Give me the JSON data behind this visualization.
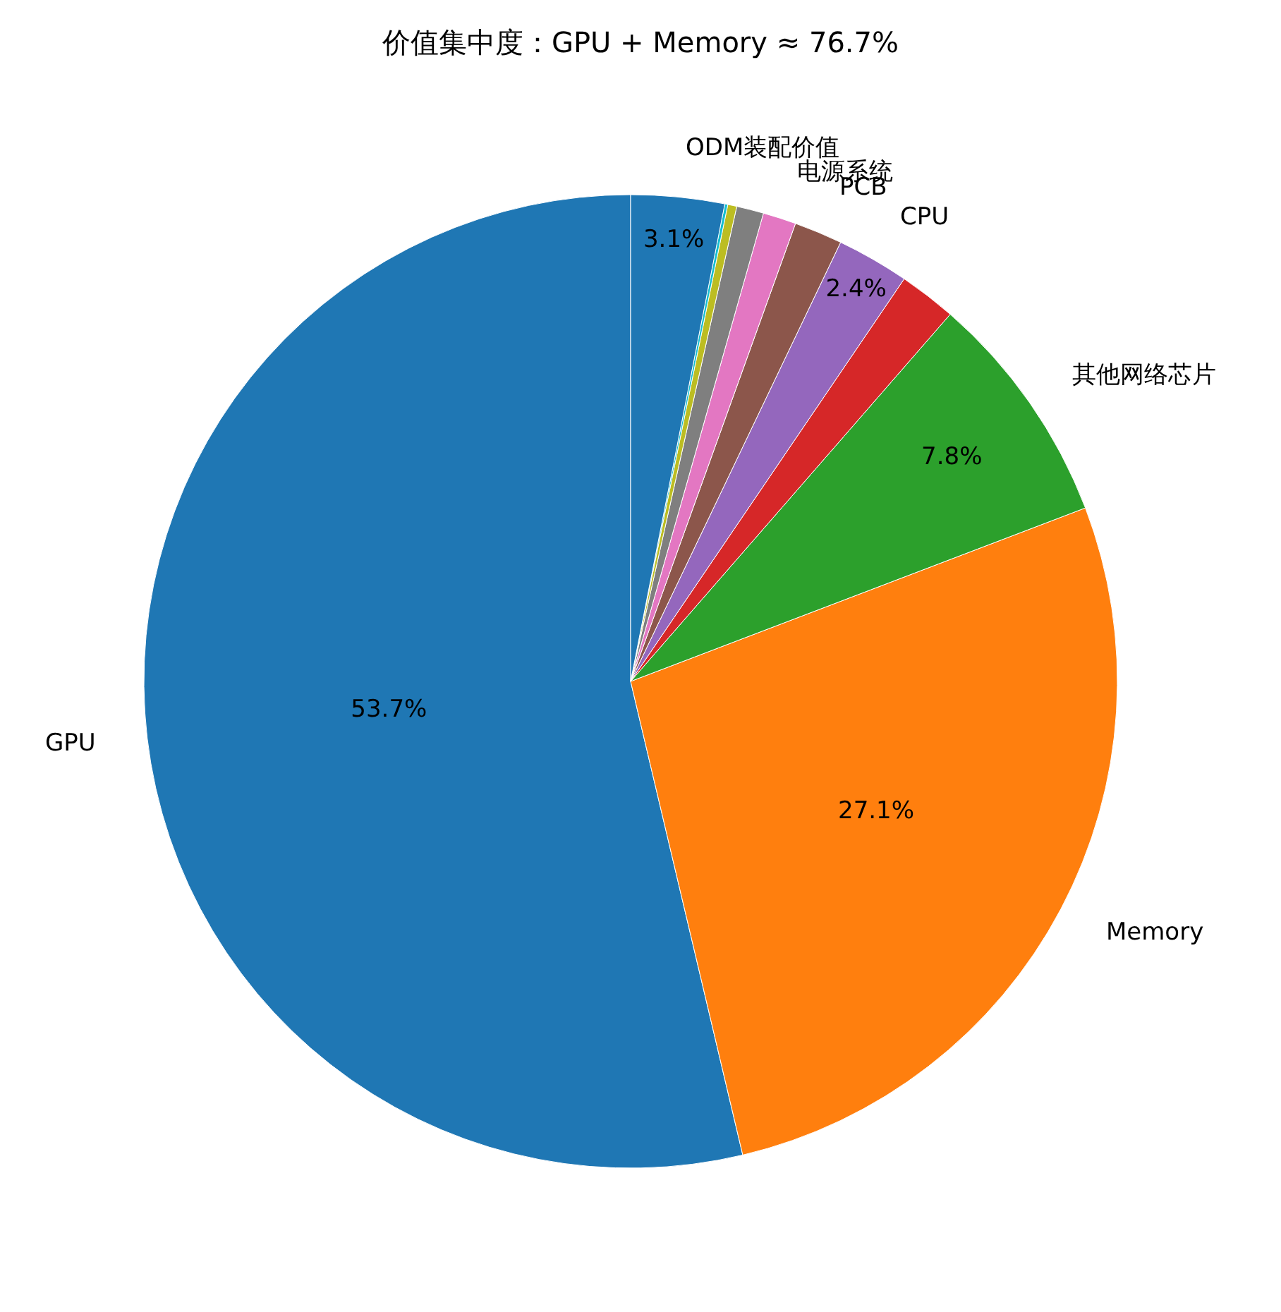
{
  "chart_data": {
    "type": "pie",
    "title": "价值集中度：GPU + Memory ≈ 76.7%",
    "categories": [
      "GPU",
      "Memory",
      "其他网络芯片",
      null,
      "CPU",
      "PCB",
      "电源系统",
      null,
      null,
      null,
      "ODM装配价值"
    ],
    "values": [
      53.7,
      27.1,
      7.8,
      1.9,
      2.4,
      1.6,
      1.1,
      0.9,
      0.3,
      0.1,
      3.1
    ],
    "value_labels": [
      "53.7%",
      "27.1%",
      "7.8%",
      null,
      "2.4%",
      null,
      null,
      null,
      null,
      null,
      "3.1%"
    ],
    "colors": [
      "#1f77b4",
      "#ff7f0e",
      "#2ca02c",
      "#d62728",
      "#9467bd",
      "#8c564b",
      "#e377c2",
      "#7f7f7f",
      "#bcbd22",
      "#17becf",
      "#1f77b4"
    ],
    "legend": false
  }
}
